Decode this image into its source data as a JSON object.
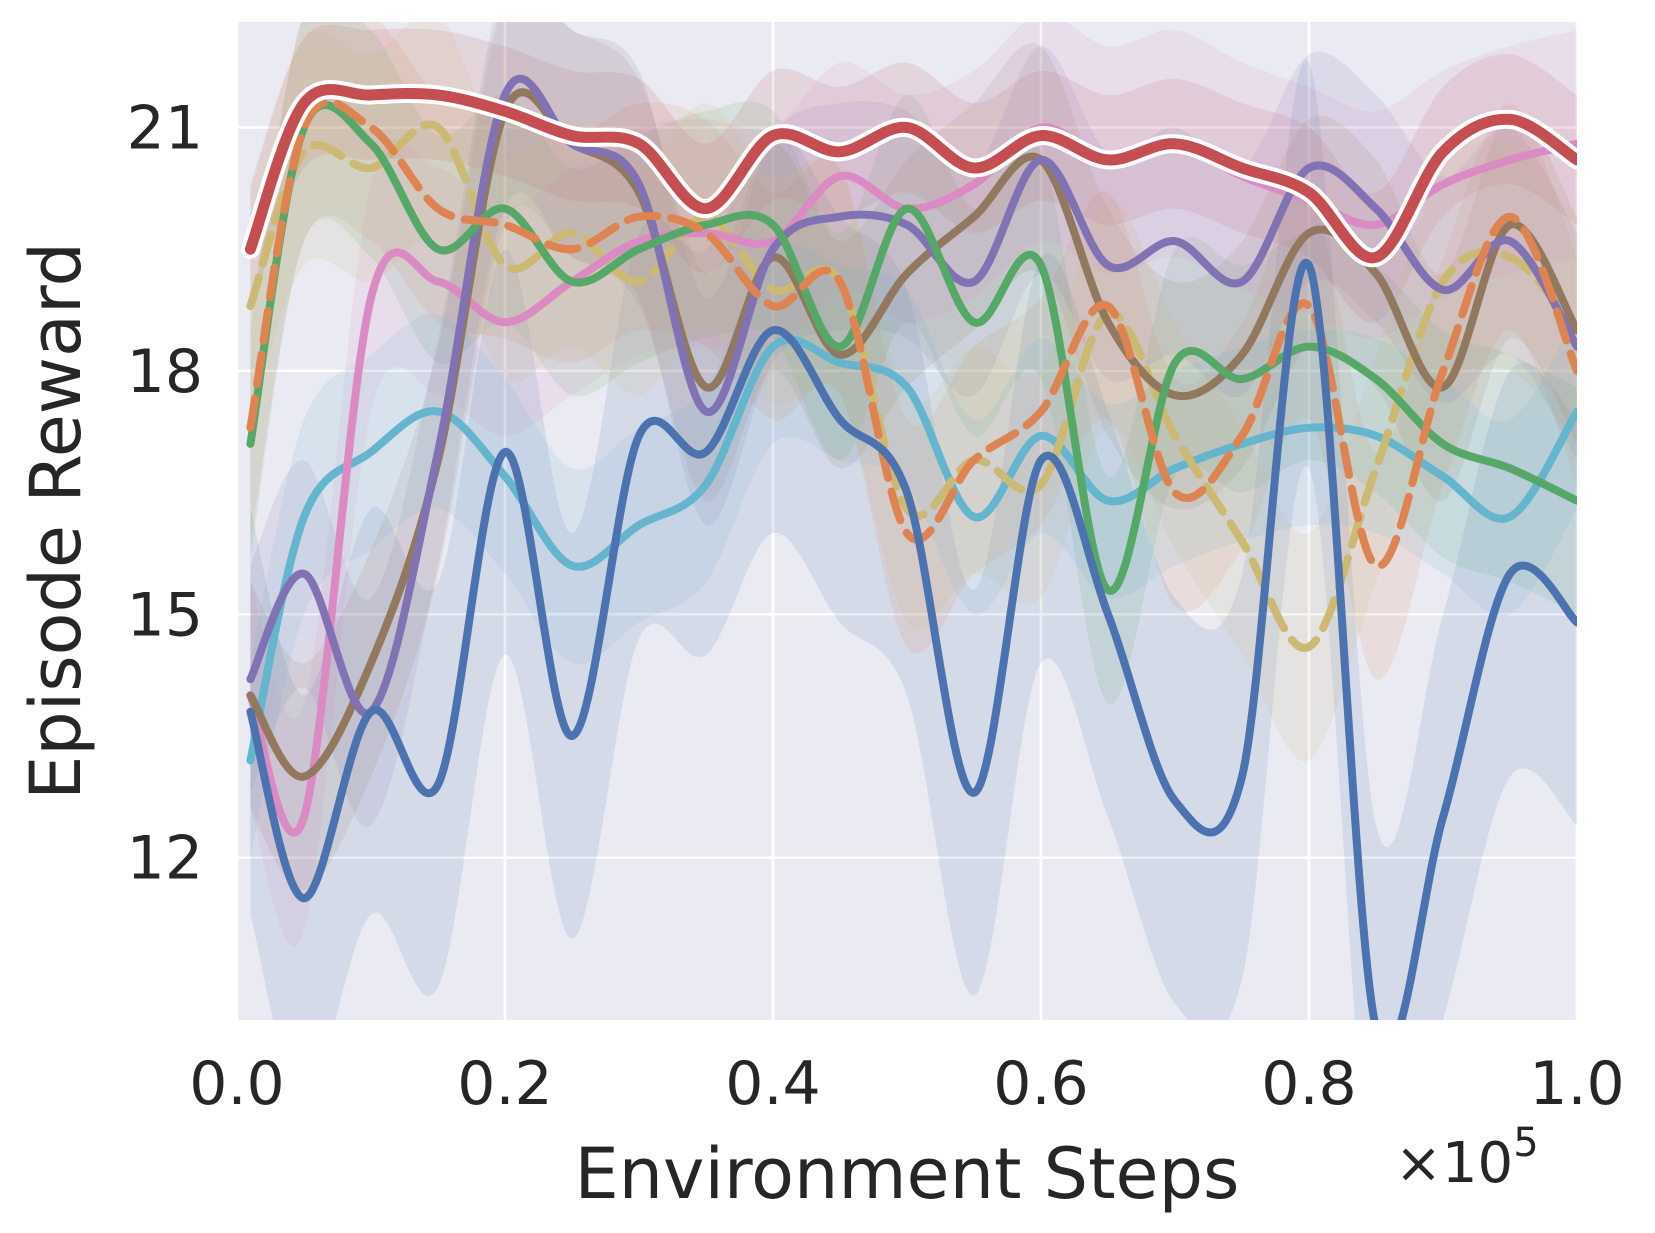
{
  "chart_data": {
    "type": "line",
    "title": "",
    "xlabel": "Environment Steps",
    "ylabel": "Episode Reward",
    "x_multiplier": "×10",
    "x_multiplier_exp": "5",
    "xlim": [
      0.0,
      1.0
    ],
    "ylim": [
      10.0,
      22.3
    ],
    "xticks": [
      "0.0",
      "0.2",
      "0.4",
      "0.6",
      "0.8",
      "1.0"
    ],
    "yticks": [
      "12",
      "15",
      "18",
      "21"
    ],
    "grid": true,
    "legend": "none",
    "background": "#eaeaf2",
    "x": [
      0.01,
      0.05,
      0.1,
      0.15,
      0.2,
      0.25,
      0.3,
      0.35,
      0.4,
      0.45,
      0.5,
      0.55,
      0.6,
      0.65,
      0.7,
      0.75,
      0.8,
      0.85,
      0.9,
      0.95,
      1.0
    ],
    "series": [
      {
        "color": "#4c72b0",
        "style": "solid",
        "band": 2.5,
        "values": [
          13.8,
          11.5,
          13.8,
          12.9,
          17.0,
          13.5,
          17.2,
          17.0,
          18.5,
          17.4,
          16.5,
          12.8,
          16.9,
          15.0,
          12.7,
          13.0,
          19.3,
          9.9,
          12.5,
          15.5,
          14.9
        ]
      },
      {
        "color": "#dd8452",
        "style": "dashed",
        "band": 1.4,
        "values": [
          17.3,
          21.0,
          21.0,
          20.0,
          19.8,
          19.5,
          19.9,
          19.7,
          18.8,
          19.1,
          16.0,
          16.9,
          17.5,
          18.8,
          16.5,
          17.2,
          18.8,
          15.6,
          18.0,
          19.9,
          18.0
        ]
      },
      {
        "color": "#55a868",
        "style": "solid",
        "band": 1.4,
        "values": [
          17.1,
          21.0,
          20.8,
          19.5,
          20.0,
          19.1,
          19.5,
          19.8,
          19.8,
          18.3,
          20.0,
          18.6,
          19.3,
          15.3,
          18.1,
          17.9,
          18.3,
          17.9,
          17.1,
          16.8,
          16.4
        ]
      },
      {
        "color": "#c44e52",
        "style": "solid",
        "outline": true,
        "band": 0.8,
        "values": [
          19.5,
          21.3,
          21.4,
          21.4,
          21.2,
          20.9,
          20.8,
          20.0,
          20.9,
          20.7,
          21.0,
          20.5,
          20.9,
          20.6,
          20.8,
          20.5,
          20.2,
          19.4,
          20.7,
          21.1,
          20.6
        ]
      },
      {
        "color": "#8172b3",
        "style": "solid",
        "band": 1.4,
        "values": [
          14.2,
          15.5,
          13.8,
          17.0,
          21.4,
          20.8,
          20.3,
          17.5,
          19.5,
          19.9,
          19.8,
          19.1,
          20.6,
          19.3,
          19.6,
          19.1,
          20.5,
          20.0,
          19.0,
          19.6,
          18.3
        ]
      },
      {
        "color": "#937860",
        "style": "solid",
        "band": 1.4,
        "values": [
          14.0,
          13.0,
          14.4,
          16.9,
          21.2,
          20.8,
          20.2,
          17.8,
          19.4,
          18.2,
          19.2,
          19.9,
          20.6,
          18.6,
          17.7,
          18.2,
          19.7,
          19.2,
          17.8,
          19.8,
          18.5
        ]
      },
      {
        "color": "#da8bc3",
        "style": "solid",
        "band": 1.4,
        "values": [
          14.0,
          12.5,
          18.9,
          19.1,
          18.6,
          19.1,
          19.6,
          19.7,
          19.6,
          20.4,
          20.0,
          20.3,
          21.0,
          20.6,
          20.8,
          20.4,
          20.1,
          19.8,
          20.3,
          20.6,
          20.8
        ]
      },
      {
        "color": "#ccb974",
        "style": "dashed",
        "band": 1.4,
        "values": [
          18.8,
          20.7,
          20.5,
          21.0,
          19.3,
          19.7,
          19.1,
          19.9,
          19.0,
          19.1,
          16.3,
          16.9,
          16.6,
          18.7,
          17.2,
          15.9,
          14.6,
          16.8,
          19.1,
          19.4,
          18.5
        ]
      },
      {
        "color": "#64b5cd",
        "style": "solid",
        "band": 1.2,
        "values": [
          13.2,
          16.2,
          17.0,
          17.5,
          16.7,
          15.6,
          16.1,
          16.6,
          18.3,
          18.1,
          17.8,
          16.2,
          17.2,
          16.4,
          16.8,
          17.1,
          17.3,
          17.2,
          16.7,
          16.2,
          17.5
        ]
      }
    ]
  }
}
